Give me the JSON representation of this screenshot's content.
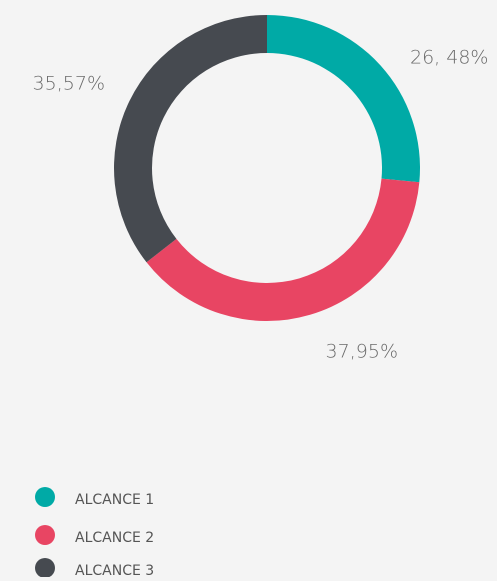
{
  "chart_data": {
    "type": "donut",
    "categories": [
      "ALCANCE 1",
      "ALCANCE 2",
      "ALCANCE 3"
    ],
    "values": [
      26.48,
      37.95,
      35.57
    ],
    "value_labels": [
      "26, 48%",
      "37,95%",
      "35,57%"
    ],
    "colors": [
      "#00aaa6",
      "#e84563",
      "#464a50"
    ],
    "legend": "bottom-left"
  }
}
